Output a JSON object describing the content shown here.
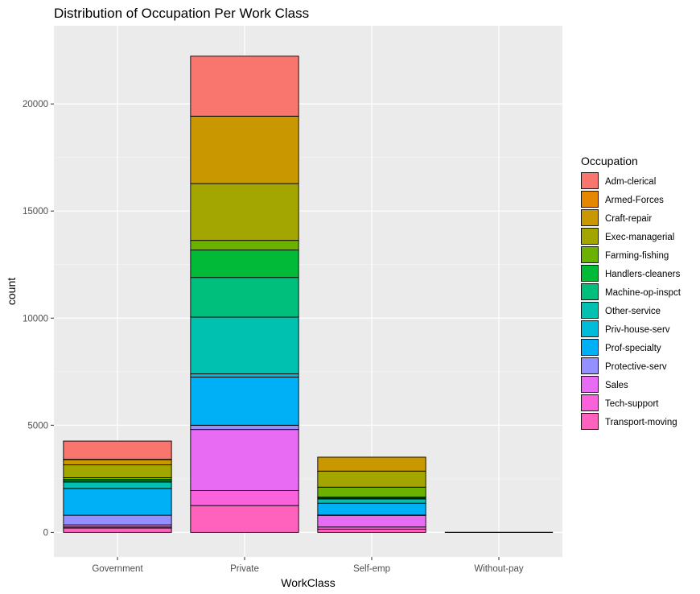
{
  "chart_data": {
    "type": "bar",
    "stacked": true,
    "title": "Distribution of Occupation Per Work Class",
    "xlabel": "WorkClass",
    "ylabel": "count",
    "ylim": [
      -1150,
      23650
    ],
    "yticks": [
      0,
      5000,
      10000,
      15000,
      20000
    ],
    "grid": true,
    "legend_position": "right",
    "legend_title": "Occupation",
    "categories": [
      "Government",
      "Private",
      "Self-emp",
      "Without-pay"
    ],
    "series": [
      {
        "name": "Adm-clerical",
        "color": "#F8766D",
        "values": [
          850,
          2800,
          0,
          0
        ]
      },
      {
        "name": "Armed-Forces",
        "color": "#E58700",
        "values": [
          10,
          0,
          0,
          0
        ]
      },
      {
        "name": "Craft-repair",
        "color": "#C99800",
        "values": [
          250,
          3150,
          650,
          0
        ]
      },
      {
        "name": "Exec-managerial",
        "color": "#A3A500",
        "values": [
          600,
          2650,
          750,
          0
        ]
      },
      {
        "name": "Farming-fishing",
        "color": "#6BB100",
        "values": [
          80,
          450,
          460,
          0
        ]
      },
      {
        "name": "Handlers-cleaners",
        "color": "#00BA38",
        "values": [
          70,
          1280,
          50,
          0
        ]
      },
      {
        "name": "Machine-op-inspct",
        "color": "#00BF7D",
        "values": [
          50,
          1850,
          40,
          0
        ]
      },
      {
        "name": "Other-service",
        "color": "#00C0AF",
        "values": [
          300,
          2650,
          200,
          0
        ]
      },
      {
        "name": "Priv-house-serv",
        "color": "#00BCD8",
        "values": [
          0,
          150,
          0,
          0
        ]
      },
      {
        "name": "Prof-specialty",
        "color": "#00B0F6",
        "values": [
          1250,
          2250,
          550,
          0
        ]
      },
      {
        "name": "Protective-serv",
        "color": "#9590FF",
        "values": [
          450,
          200,
          10,
          0
        ]
      },
      {
        "name": "Sales",
        "color": "#E76BF3",
        "values": [
          100,
          2850,
          550,
          0
        ]
      },
      {
        "name": "Tech-support",
        "color": "#FA62DB",
        "values": [
          50,
          700,
          100,
          0
        ]
      },
      {
        "name": "Transport-moving",
        "color": "#FF62BC",
        "values": [
          200,
          1250,
          150,
          0
        ]
      }
    ]
  }
}
